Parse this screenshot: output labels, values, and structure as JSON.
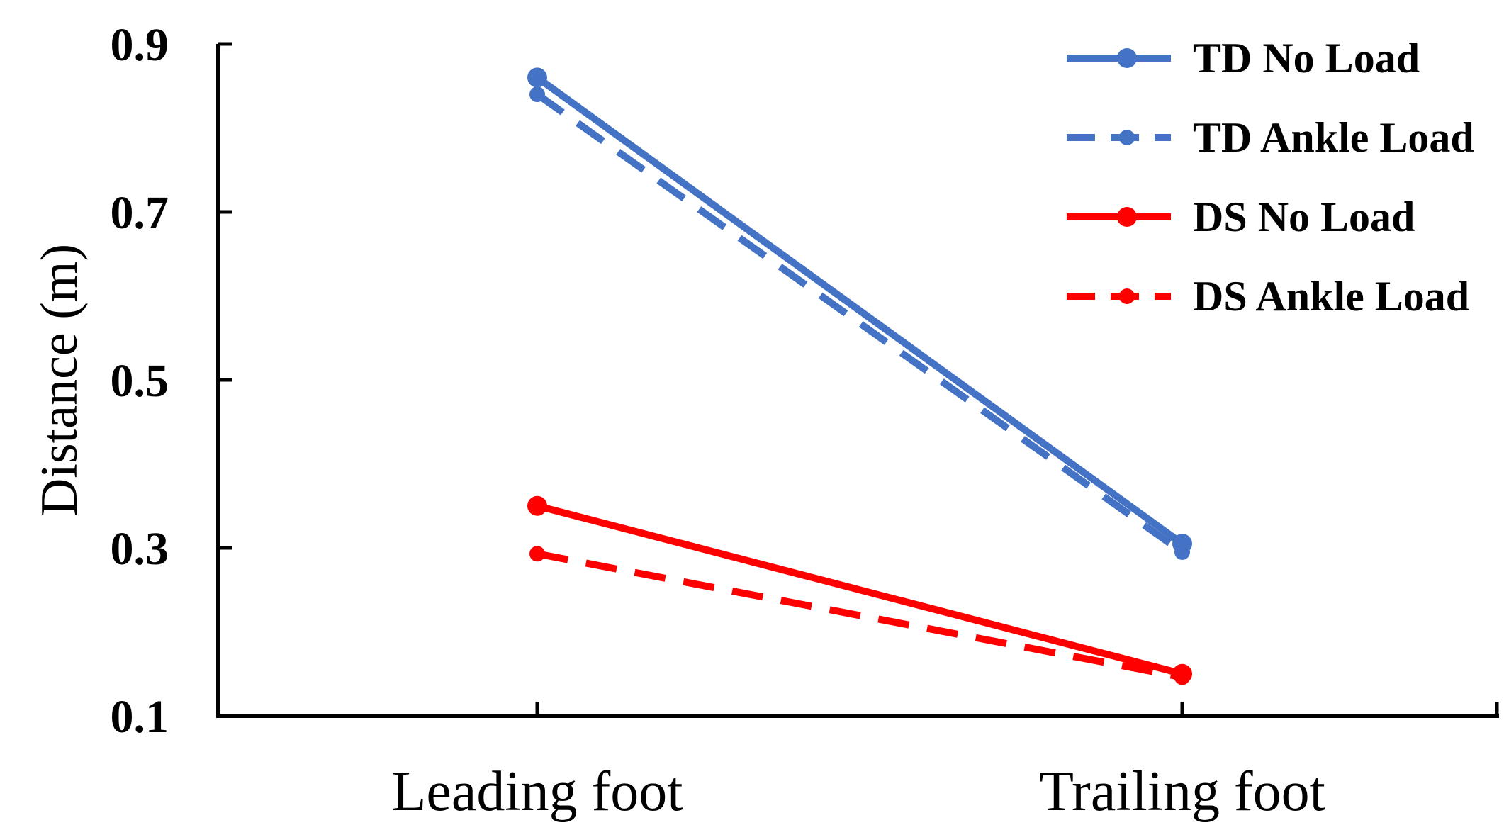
{
  "chart_data": {
    "type": "line",
    "title": "",
    "xlabel": "",
    "ylabel": "Distance (m)",
    "categories": [
      "Leading foot",
      "Trailing foot"
    ],
    "ylim": [
      0.1,
      0.9
    ],
    "yticks": [
      "0.1",
      "0.3",
      "0.5",
      "0.7",
      "0.9"
    ],
    "grid": false,
    "legend_position": "top-right",
    "series": [
      {
        "name": "TD No Load",
        "values": [
          0.86,
          0.305
        ],
        "color": "#4472C4",
        "dashed": false
      },
      {
        "name": "TD Ankle Load",
        "values": [
          0.84,
          0.295
        ],
        "color": "#4472C4",
        "dashed": true
      },
      {
        "name": "DS No Load",
        "values": [
          0.35,
          0.15
        ],
        "color": "#FF0000",
        "dashed": false
      },
      {
        "name": "DS Ankle Load",
        "values": [
          0.293,
          0.146
        ],
        "color": "#FF0000",
        "dashed": true
      }
    ]
  }
}
